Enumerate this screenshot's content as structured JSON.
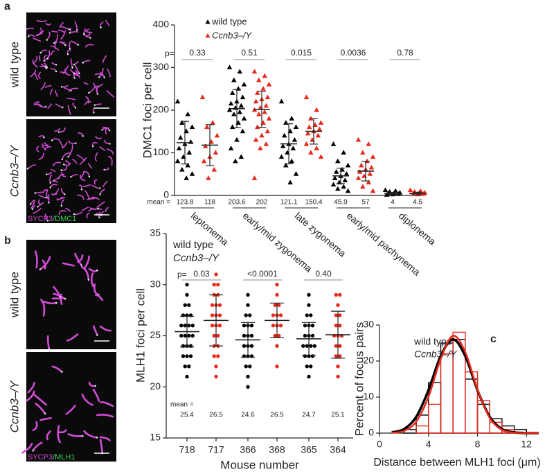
{
  "panel_labels": [
    "a",
    "b",
    "c"
  ],
  "images": [
    {
      "label": "wild type",
      "color": "#000000"
    },
    {
      "label": "Ccnb3–/Y",
      "color": "#e8291c",
      "stain": [
        "SYCP3",
        "/DMC1"
      ]
    },
    {
      "label": "wild type",
      "color": "#000000"
    },
    {
      "label": "Ccnb3–/Y",
      "color": "#e8291c",
      "stain": [
        "SYCP3",
        "/MLH1"
      ]
    }
  ],
  "chart_data": [
    {
      "type": "dotplot",
      "ylabel": "DMC1 foci per cell",
      "ylim": [
        0,
        400
      ],
      "yticks": [
        0,
        100,
        200,
        300,
        400
      ],
      "mean_label": "mean =",
      "p_prefix": "p=",
      "stages": [
        "leptonema",
        "early/mid zygonema",
        "late zygonema",
        "early/mid pachynema",
        "diplonema"
      ],
      "p_values": [
        "0.33",
        "0.51",
        "0.015",
        "0.0036",
        "0.78"
      ],
      "series": [
        {
          "name": "wild type",
          "color": "#000000",
          "marker": "triangle",
          "means": [
            123.8,
            203.6,
            121.1,
            45.9,
            4
          ],
          "sd": [
            50,
            45,
            47,
            18,
            3
          ],
          "points": [
            [
              220,
              190,
              170,
              160,
              150,
              135,
              125,
              120,
              110,
              100,
              90,
              80,
              70,
              60,
              50,
              40
            ],
            [
              300,
              290,
              270,
              260,
              250,
              240,
              230,
              220,
              215,
              210,
              205,
              200,
              195,
              190,
              180,
              170,
              160,
              150,
              130,
              110,
              90,
              80
            ],
            [
              220,
              180,
              170,
              160,
              150,
              140,
              130,
              120,
              115,
              110,
              100,
              90,
              80,
              70,
              50,
              30
            ],
            [
              120,
              100,
              80,
              70,
              60,
              55,
              50,
              45,
              40,
              35,
              30,
              25,
              20,
              15,
              10
            ],
            [
              12,
              10,
              8,
              6,
              5,
              4,
              3,
              2,
              1
            ]
          ]
        },
        {
          "name": "Ccnb3–/Y",
          "color": "#e8291c",
          "marker": "triangle",
          "means": [
            118,
            202,
            150.4,
            57,
            4.5
          ],
          "sd": [
            48,
            42,
            30,
            23,
            3
          ],
          "points": [
            [
              230,
              170,
              160,
              140,
              125,
              115,
              100,
              90,
              80,
              60,
              40
            ],
            [
              290,
              280,
              270,
              260,
              250,
              240,
              230,
              225,
              220,
              210,
              205,
              200,
              195,
              190,
              180,
              170,
              160,
              150,
              140,
              130,
              120,
              110,
              40
            ],
            [
              230,
              200,
              180,
              170,
              165,
              160,
              155,
              150,
              145,
              140,
              130,
              120,
              110,
              100,
              90
            ],
            [
              130,
              120,
              100,
              90,
              80,
              70,
              65,
              60,
              55,
              50,
              45,
              40,
              30,
              20,
              10
            ],
            [
              12,
              10,
              8,
              6,
              5,
              4,
              3,
              2
            ]
          ]
        }
      ]
    },
    {
      "type": "dotplot-mouse",
      "ylabel": "MLH1 foci per cell",
      "xlabel": "Mouse number",
      "ylim": [
        15,
        35
      ],
      "yticks": [
        15,
        20,
        25,
        30,
        35
      ],
      "mean_label": "mean =",
      "p_prefix": "p=",
      "p_values": [
        "0.03",
        "<0.0001",
        "0.40"
      ],
      "legend": [
        {
          "name": "wild type",
          "color": "#000000"
        },
        {
          "name": "Ccnb3–/Y",
          "color": "#e8291c"
        }
      ],
      "groups": [
        {
          "name": "718",
          "color": "#000000",
          "mean": 25.4,
          "sd": 1.5,
          "points": [
            21,
            22,
            22,
            23,
            23,
            23,
            24,
            24,
            24,
            25,
            25,
            25,
            25,
            26,
            26,
            26,
            26,
            27,
            27,
            27,
            28,
            28,
            29,
            30
          ]
        },
        {
          "name": "717",
          "color": "#e8291c",
          "mean": 26.5,
          "sd": 2.5,
          "points": [
            21,
            22,
            23,
            23,
            24,
            24,
            25,
            25,
            26,
            26,
            26,
            27,
            27,
            27,
            28,
            28,
            28,
            29,
            29,
            30,
            30,
            31
          ]
        },
        {
          "name": "366",
          "color": "#000000",
          "mean": 24.6,
          "sd": 1.7,
          "points": [
            20,
            21,
            22,
            22,
            23,
            23,
            23,
            24,
            24,
            24,
            25,
            25,
            25,
            26,
            26,
            26,
            27,
            27,
            28,
            29
          ]
        },
        {
          "name": "368",
          "color": "#e8291c",
          "mean": 26.5,
          "sd": 1.7,
          "points": [
            22,
            24,
            25,
            25,
            26,
            26,
            26,
            27,
            27,
            27,
            28,
            28,
            29,
            30
          ]
        },
        {
          "name": "365",
          "color": "#000000",
          "mean": 24.7,
          "sd": 1.6,
          "points": [
            21,
            22,
            22,
            23,
            23,
            23,
            24,
            24,
            24,
            24,
            25,
            25,
            25,
            26,
            26,
            26,
            27,
            27,
            28,
            29
          ]
        },
        {
          "name": "364",
          "color": "#e8291c",
          "mean": 25.1,
          "sd": 2.3,
          "points": [
            21,
            22,
            23,
            23,
            24,
            24,
            25,
            25,
            25,
            26,
            26,
            27,
            27,
            28,
            29,
            29
          ]
        }
      ]
    },
    {
      "type": "histogram-fit",
      "ylabel": "Percent of focus pairs",
      "xlabel": "Distance between MLH1 foci (μm)",
      "xlim": [
        0,
        13
      ],
      "xticks": [
        0,
        4,
        8,
        12
      ],
      "ylim": [
        0,
        30
      ],
      "yticks": [
        0,
        10,
        20,
        30
      ],
      "series": [
        {
          "name": "wild type",
          "color": "#000000",
          "bins": [
            2,
            3,
            4,
            5,
            6,
            7,
            8,
            9,
            10,
            11,
            12
          ],
          "counts": [
            1,
            5,
            14,
            25,
            26,
            15,
            8,
            4,
            2,
            1
          ],
          "fit_x": [
            1,
            2,
            3,
            4,
            5,
            6,
            7,
            8,
            9,
            10,
            11,
            12,
            13
          ],
          "fit": [
            0.2,
            1.1,
            4.5,
            11.9,
            21.4,
            26,
            21.4,
            11.9,
            4.5,
            1.1,
            0.2,
            0,
            0
          ]
        },
        {
          "name": "Ccnb3–/Y",
          "color": "#e8291c",
          "bins": [
            2,
            3,
            4,
            5,
            6,
            7,
            8,
            9,
            10,
            11,
            12
          ],
          "counts": [
            0,
            2,
            8,
            22,
            28,
            17,
            9,
            3,
            1,
            0
          ],
          "fit_x": [
            1,
            2,
            3,
            4,
            5,
            6,
            7,
            8,
            9,
            10,
            11,
            12,
            13
          ],
          "fit": [
            0.1,
            0.6,
            3.2,
            10.1,
            20.6,
            27,
            22.5,
            12.1,
            4.2,
            0.9,
            0.1,
            0,
            0
          ]
        }
      ]
    }
  ]
}
